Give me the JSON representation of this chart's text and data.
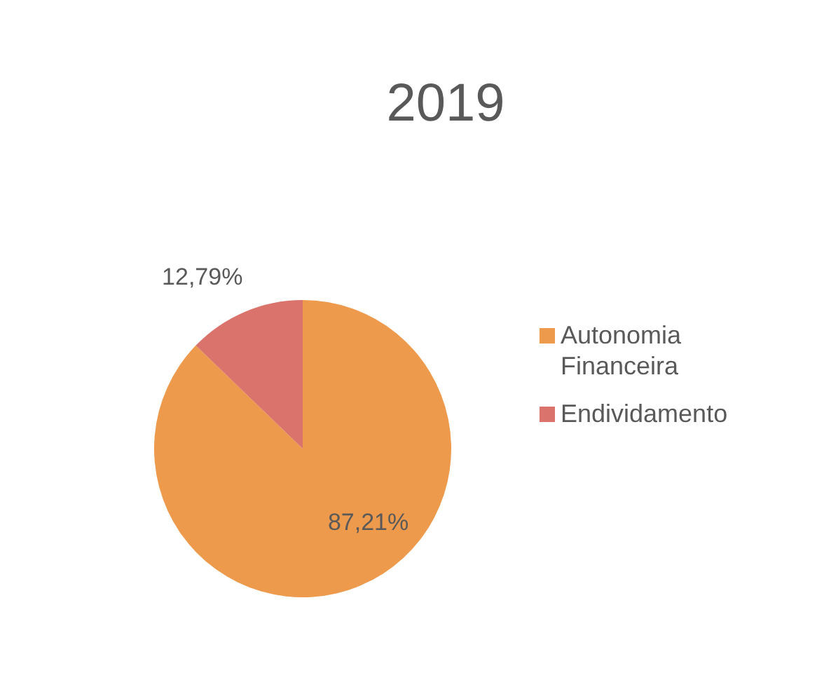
{
  "chart_data": {
    "type": "pie",
    "title": "2019",
    "categories": [
      "Autonomia Financeira",
      "Endividamento"
    ],
    "values": [
      87.21,
      12.79
    ],
    "colors": [
      "#ee9a4d",
      "#d9736b"
    ],
    "value_labels": [
      "87,21%",
      "12,79%"
    ],
    "legend": "right"
  }
}
